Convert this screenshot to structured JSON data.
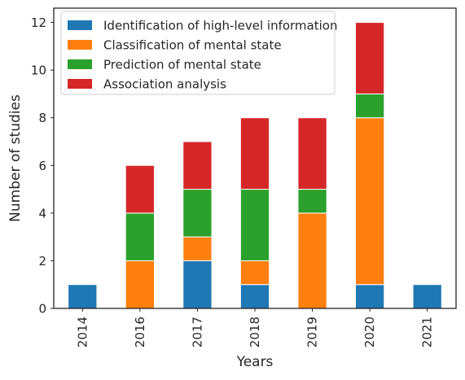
{
  "chart_data": {
    "type": "bar",
    "stacked": true,
    "title": "",
    "xlabel": "Years",
    "ylabel": "Number of studies",
    "categories": [
      "2014",
      "2016",
      "2017",
      "2018",
      "2019",
      "2020",
      "2021"
    ],
    "ylim": [
      0,
      12.6
    ],
    "yticks": [
      0,
      2,
      4,
      6,
      8,
      10,
      12
    ],
    "grid": false,
    "legend_position": "top-left",
    "series": [
      {
        "name": "Identification of high-level information",
        "color": "#1f77b4",
        "values": [
          1,
          0,
          2,
          1,
          0,
          1,
          1
        ]
      },
      {
        "name": "Classification of mental state",
        "color": "#ff7f0e",
        "values": [
          0,
          2,
          1,
          1,
          4,
          7,
          0
        ]
      },
      {
        "name": "Prediction of mental state",
        "color": "#2ca02c",
        "values": [
          0,
          2,
          2,
          3,
          1,
          1,
          0
        ]
      },
      {
        "name": "Association analysis",
        "color": "#d62728",
        "values": [
          0,
          2,
          2,
          3,
          3,
          3,
          0
        ]
      }
    ]
  }
}
